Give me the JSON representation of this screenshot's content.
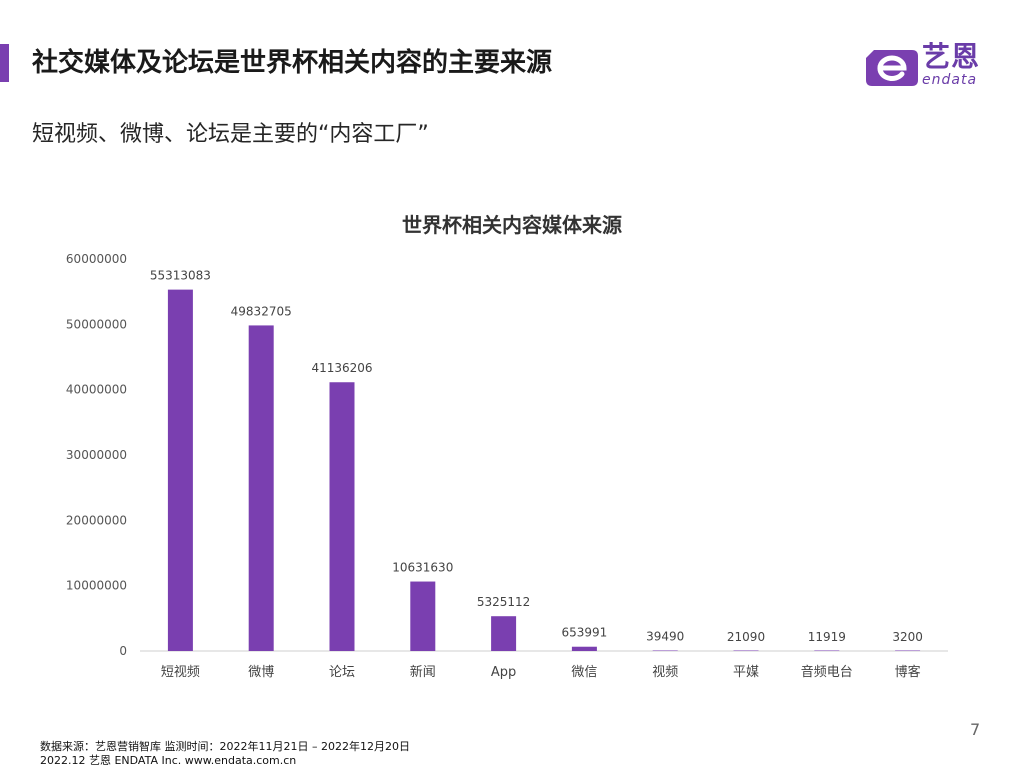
{
  "header": {
    "title": "社交媒体及论坛是世界杯相关内容的主要来源",
    "subtitle": "短视频、微博、论坛是主要的“内容工厂”"
  },
  "logo": {
    "cn": "艺恩",
    "en": "endata",
    "brand_color": "#7a3fb0"
  },
  "chart_data": {
    "type": "bar",
    "title": "世界杯相关内容媒体来源",
    "xlabel": "",
    "ylabel": "",
    "categories": [
      "短视频",
      "微博",
      "论坛",
      "新闻",
      "App",
      "微信",
      "视频",
      "平媒",
      "音频电台",
      "博客"
    ],
    "values": [
      55313083,
      49832705,
      41136206,
      10631630,
      5325112,
      653991,
      39490,
      21090,
      11919,
      3200
    ],
    "value_labels": [
      "55313083",
      "49832705",
      "41136206",
      "10631630",
      "5325112",
      "653991",
      "39490",
      "21090",
      "11919",
      "3200"
    ],
    "ylim": [
      0,
      60000000
    ],
    "yticks": [
      0,
      10000000,
      20000000,
      30000000,
      40000000,
      50000000,
      60000000
    ],
    "ytick_labels": [
      "0",
      "10000000",
      "20000000",
      "30000000",
      "40000000",
      "50000000",
      "60000000"
    ],
    "bar_color": "#7a3fb0",
    "grid": false,
    "legend": "none"
  },
  "page_number": "7",
  "footer": {
    "line1": "数据来源：艺恩营销智库 监测时间：2022年11月21日 – 2022年12月20日",
    "line2": "2022.12 艺恩 ENDATA Inc.     www.endata.com.cn"
  }
}
